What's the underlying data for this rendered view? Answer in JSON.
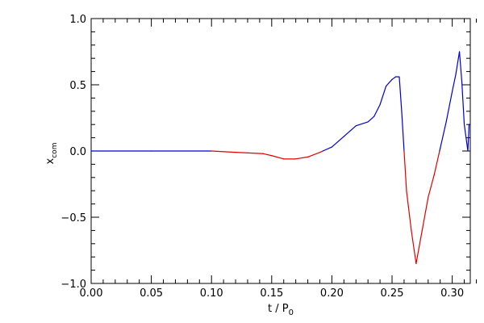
{
  "chart_data": {
    "type": "line",
    "title": "",
    "xlabel": "t / P",
    "xlabel_subscript": "0",
    "ylabel": "x",
    "ylabel_subscript": "com",
    "xlim": [
      0.0,
      0.315
    ],
    "ylim": [
      -1.0,
      1.0
    ],
    "xticks": [
      0.0,
      0.05,
      0.1,
      0.15,
      0.2,
      0.25,
      0.3
    ],
    "xtick_labels": [
      "0.00",
      "0.05",
      "0.10",
      "0.15",
      "0.20",
      "0.25",
      "0.30"
    ],
    "yticks": [
      -1.0,
      -0.5,
      0.0,
      0.5,
      1.0
    ],
    "ytick_labels": [
      "−1.0",
      "−0.5",
      "0.0",
      "0.5",
      "1.0"
    ],
    "grid": false,
    "colors": {
      "negative": "#e00000",
      "positive": "#0000cc",
      "axes": "#000000"
    },
    "series": [
      {
        "color_rule": "red where value < 0, blue where value >= 0",
        "x": [
          0.0,
          0.05,
          0.1,
          0.12,
          0.143,
          0.15,
          0.16,
          0.17,
          0.18,
          0.19,
          0.2,
          0.21,
          0.22,
          0.23,
          0.235,
          0.24,
          0.245,
          0.25,
          0.253,
          0.256,
          0.258,
          0.262,
          0.266,
          0.27,
          0.275,
          0.28,
          0.285,
          0.29,
          0.295,
          0.3,
          0.303,
          0.306,
          0.308,
          0.31,
          0.313,
          0.314,
          0.315
        ],
        "y": [
          0.0,
          0.0,
          0.0,
          -0.01,
          -0.02,
          -0.035,
          -0.06,
          -0.06,
          -0.045,
          -0.01,
          0.03,
          0.11,
          0.19,
          0.22,
          0.26,
          0.35,
          0.49,
          0.54,
          0.56,
          0.56,
          0.3,
          -0.3,
          -0.6,
          -0.85,
          -0.6,
          -0.35,
          -0.18,
          0.02,
          0.22,
          0.45,
          0.58,
          0.75,
          0.52,
          0.2,
          0.0,
          0.2,
          0.2
        ]
      }
    ]
  }
}
